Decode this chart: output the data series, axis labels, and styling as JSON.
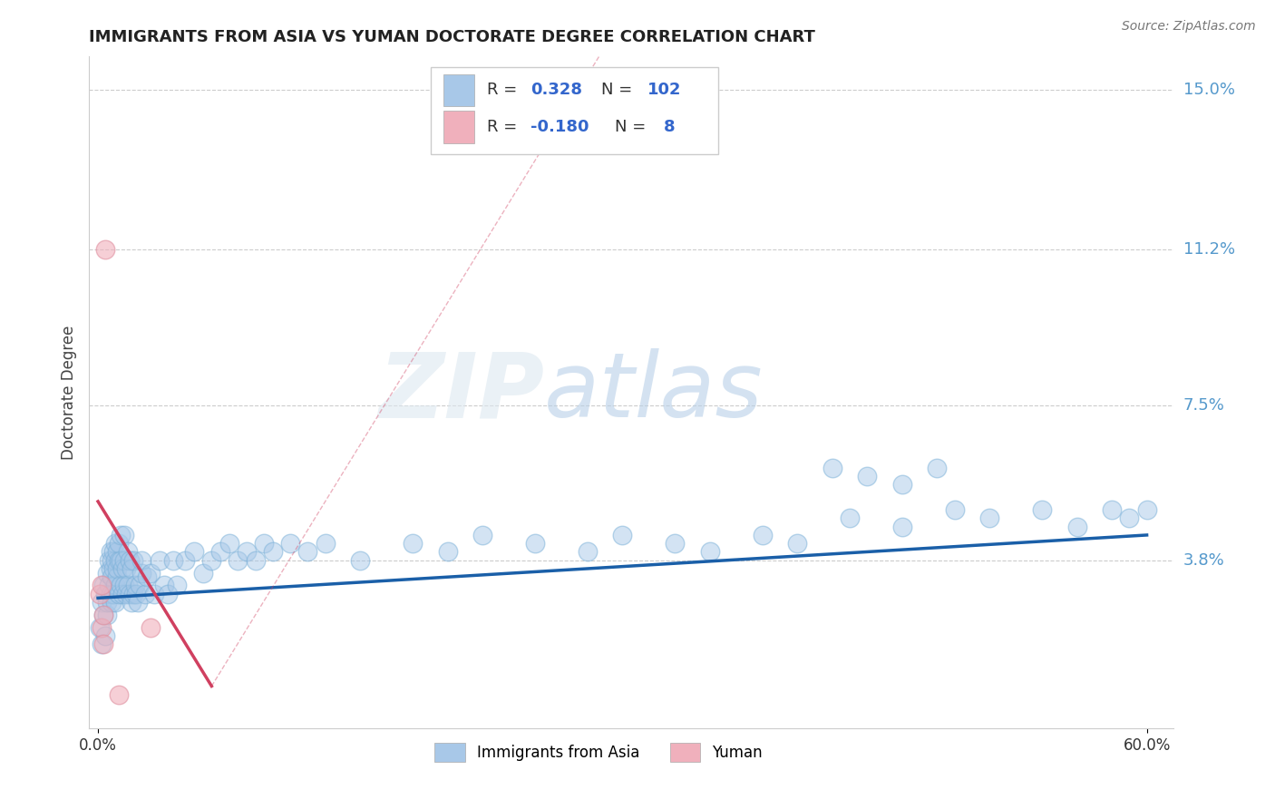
{
  "title": "IMMIGRANTS FROM ASIA VS YUMAN DOCTORATE DEGREE CORRELATION CHART",
  "source_text": "Source: ZipAtlas.com",
  "ylabel": "Doctorate Degree",
  "legend_labels": [
    "Immigrants from Asia",
    "Yuman"
  ],
  "r_values": [
    0.328,
    -0.18
  ],
  "n_values": [
    102,
    8
  ],
  "xlim": [
    -0.005,
    0.615
  ],
  "ylim": [
    -0.002,
    0.158
  ],
  "yticks": [
    0.038,
    0.075,
    0.112,
    0.15
  ],
  "ytick_labels": [
    "3.8%",
    "7.5%",
    "11.2%",
    "15.0%"
  ],
  "xtick_positions": [
    0.0,
    0.6
  ],
  "xtick_labels": [
    "0.0%",
    "60.0%"
  ],
  "blue_color": "#a8c8e8",
  "pink_color": "#f0b0bc",
  "blue_line_color": "#1a5fa8",
  "pink_line_color": "#d04060",
  "grid_color": "#cccccc",
  "title_color": "#222222",
  "axis_label_color": "#5599cc",
  "watermark_zip": "ZIP",
  "watermark_atlas": "atlas",
  "blue_x": [
    0.001,
    0.002,
    0.002,
    0.003,
    0.003,
    0.004,
    0.004,
    0.005,
    0.005,
    0.005,
    0.006,
    0.006,
    0.007,
    0.007,
    0.007,
    0.008,
    0.008,
    0.008,
    0.009,
    0.009,
    0.009,
    0.01,
    0.01,
    0.01,
    0.01,
    0.011,
    0.011,
    0.011,
    0.012,
    0.012,
    0.012,
    0.013,
    0.013,
    0.013,
    0.014,
    0.014,
    0.015,
    0.015,
    0.015,
    0.016,
    0.016,
    0.017,
    0.017,
    0.018,
    0.018,
    0.019,
    0.019,
    0.02,
    0.02,
    0.021,
    0.022,
    0.023,
    0.024,
    0.025,
    0.025,
    0.027,
    0.028,
    0.03,
    0.032,
    0.035,
    0.038,
    0.04,
    0.043,
    0.045,
    0.05,
    0.055,
    0.06,
    0.065,
    0.07,
    0.075,
    0.08,
    0.085,
    0.09,
    0.095,
    0.1,
    0.11,
    0.12,
    0.13,
    0.15,
    0.18,
    0.2,
    0.22,
    0.25,
    0.28,
    0.3,
    0.33,
    0.35,
    0.38,
    0.4,
    0.43,
    0.46,
    0.49,
    0.51,
    0.54,
    0.56,
    0.58,
    0.59,
    0.6,
    0.42,
    0.44,
    0.46,
    0.48
  ],
  "blue_y": [
    0.022,
    0.018,
    0.028,
    0.025,
    0.032,
    0.02,
    0.03,
    0.025,
    0.035,
    0.028,
    0.032,
    0.038,
    0.03,
    0.036,
    0.04,
    0.028,
    0.034,
    0.038,
    0.03,
    0.036,
    0.04,
    0.032,
    0.038,
    0.042,
    0.028,
    0.034,
    0.04,
    0.036,
    0.03,
    0.038,
    0.042,
    0.032,
    0.038,
    0.044,
    0.03,
    0.036,
    0.032,
    0.038,
    0.044,
    0.03,
    0.036,
    0.032,
    0.04,
    0.03,
    0.038,
    0.028,
    0.036,
    0.03,
    0.038,
    0.032,
    0.03,
    0.028,
    0.032,
    0.035,
    0.038,
    0.03,
    0.034,
    0.035,
    0.03,
    0.038,
    0.032,
    0.03,
    0.038,
    0.032,
    0.038,
    0.04,
    0.035,
    0.038,
    0.04,
    0.042,
    0.038,
    0.04,
    0.038,
    0.042,
    0.04,
    0.042,
    0.04,
    0.042,
    0.038,
    0.042,
    0.04,
    0.044,
    0.042,
    0.04,
    0.044,
    0.042,
    0.04,
    0.044,
    0.042,
    0.048,
    0.046,
    0.05,
    0.048,
    0.05,
    0.046,
    0.05,
    0.048,
    0.05,
    0.06,
    0.058,
    0.056,
    0.06
  ],
  "pink_x": [
    0.001,
    0.002,
    0.002,
    0.003,
    0.003,
    0.004,
    0.03,
    0.012
  ],
  "pink_y": [
    0.03,
    0.022,
    0.032,
    0.018,
    0.025,
    0.112,
    0.022,
    0.006
  ],
  "blue_line_x": [
    0.0,
    0.6
  ],
  "blue_line_y": [
    0.029,
    0.044
  ],
  "pink_line_x": [
    0.0,
    0.065
  ],
  "pink_line_y": [
    0.052,
    0.008
  ]
}
